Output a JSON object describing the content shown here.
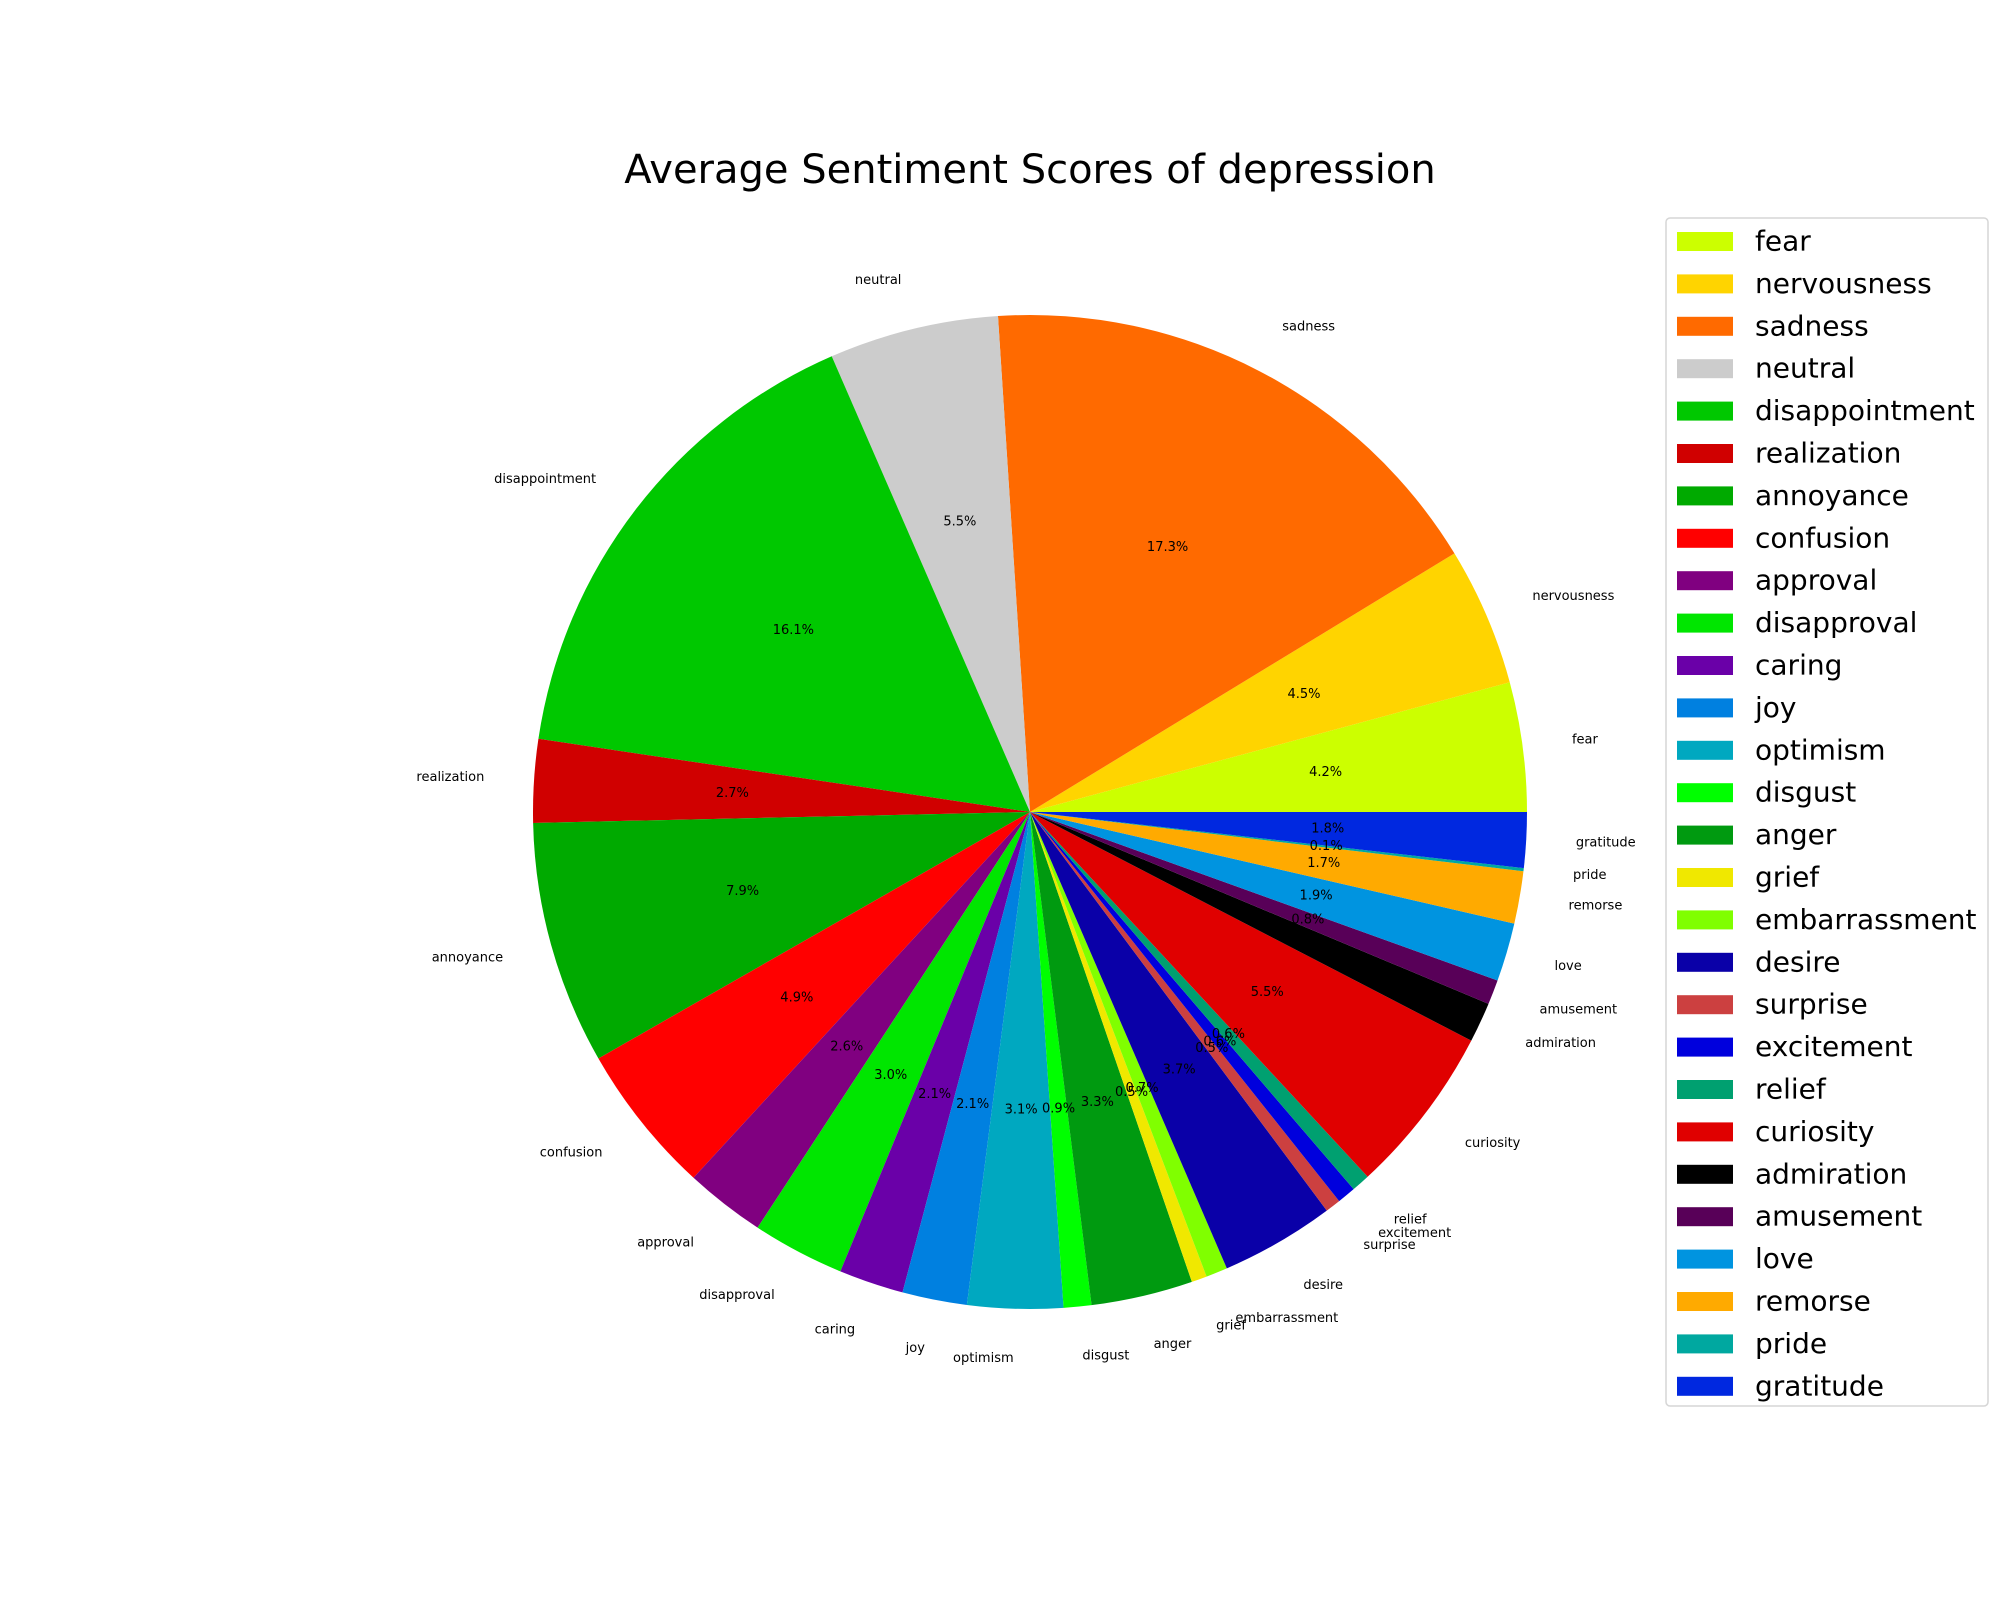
{
  "chart_data": {
    "type": "pie",
    "title": "Average Sentiment Scores of depression",
    "start_angle_deg": 0,
    "direction": "counterclockwise",
    "legend_position": "right",
    "slices": [
      {
        "label": "fear",
        "value": 4.2,
        "pct_label": "4.2%",
        "color": "#ccff00"
      },
      {
        "label": "nervousness",
        "value": 4.5,
        "pct_label": "4.5%",
        "color": "#ffd400"
      },
      {
        "label": "sadness",
        "value": 17.3,
        "pct_label": "17.3%",
        "color": "#ff6a00"
      },
      {
        "label": "neutral",
        "value": 5.5,
        "pct_label": "5.5%",
        "color": "#cccccc"
      },
      {
        "label": "disappointment",
        "value": 16.1,
        "pct_label": "16.1%",
        "color": "#00c800"
      },
      {
        "label": "realization",
        "value": 2.7,
        "pct_label": "2.7%",
        "color": "#d00000"
      },
      {
        "label": "annoyance",
        "value": 7.9,
        "pct_label": "7.9%",
        "color": "#00aa00"
      },
      {
        "label": "confusion",
        "value": 4.9,
        "pct_label": "4.9%",
        "color": "#ff0000"
      },
      {
        "label": "approval",
        "value": 2.6,
        "pct_label": "2.6%",
        "color": "#800080"
      },
      {
        "label": "disapproval",
        "value": 3.0,
        "pct_label": "3.0%",
        "color": "#00e600"
      },
      {
        "label": "caring",
        "value": 2.1,
        "pct_label": "2.1%",
        "color": "#6a00a8"
      },
      {
        "label": "joy",
        "value": 2.1,
        "pct_label": "2.1%",
        "color": "#0080e0"
      },
      {
        "label": "optimism",
        "value": 3.1,
        "pct_label": "3.1%",
        "color": "#00a8c0"
      },
      {
        "label": "disgust",
        "value": 0.9,
        "pct_label": "0.9%",
        "color": "#00ff00"
      },
      {
        "label": "anger",
        "value": 3.3,
        "pct_label": "3.3%",
        "color": "#009a10"
      },
      {
        "label": "grief",
        "value": 0.5,
        "pct_label": "0.5%",
        "color": "#f0e800"
      },
      {
        "label": "embarrassment",
        "value": 0.7,
        "pct_label": "0.7%",
        "color": "#80ff00"
      },
      {
        "label": "desire",
        "value": 3.7,
        "pct_label": "3.7%",
        "color": "#0a00a8"
      },
      {
        "label": "surprise",
        "value": 0.5,
        "pct_label": "0.5%",
        "color": "#cc4040"
      },
      {
        "label": "excitement",
        "value": 0.6,
        "pct_label": "0.6%",
        "color": "#0000dd"
      },
      {
        "label": "relief",
        "value": 0.6,
        "pct_label": "0.6%",
        "color": "#00a070"
      },
      {
        "label": "curiosity",
        "value": 5.5,
        "pct_label": "5.5%",
        "color": "#e00000"
      },
      {
        "label": "admiration",
        "value": 1.3,
        "pct_label": "1.3%",
        "color": "#000000"
      },
      {
        "label": "amusement",
        "value": 0.8,
        "pct_label": "0.8%",
        "color": "#580058"
      },
      {
        "label": "love",
        "value": 1.9,
        "pct_label": "1.9%",
        "color": "#0094e0"
      },
      {
        "label": "remorse",
        "value": 1.7,
        "pct_label": "1.7%",
        "color": "#ffaa00"
      },
      {
        "label": "pride",
        "value": 0.1,
        "pct_label": "0.1%",
        "color": "#00a8a0"
      },
      {
        "label": "gratitude",
        "value": 1.8,
        "pct_label": "1.8%",
        "color": "#0028e0"
      }
    ]
  }
}
